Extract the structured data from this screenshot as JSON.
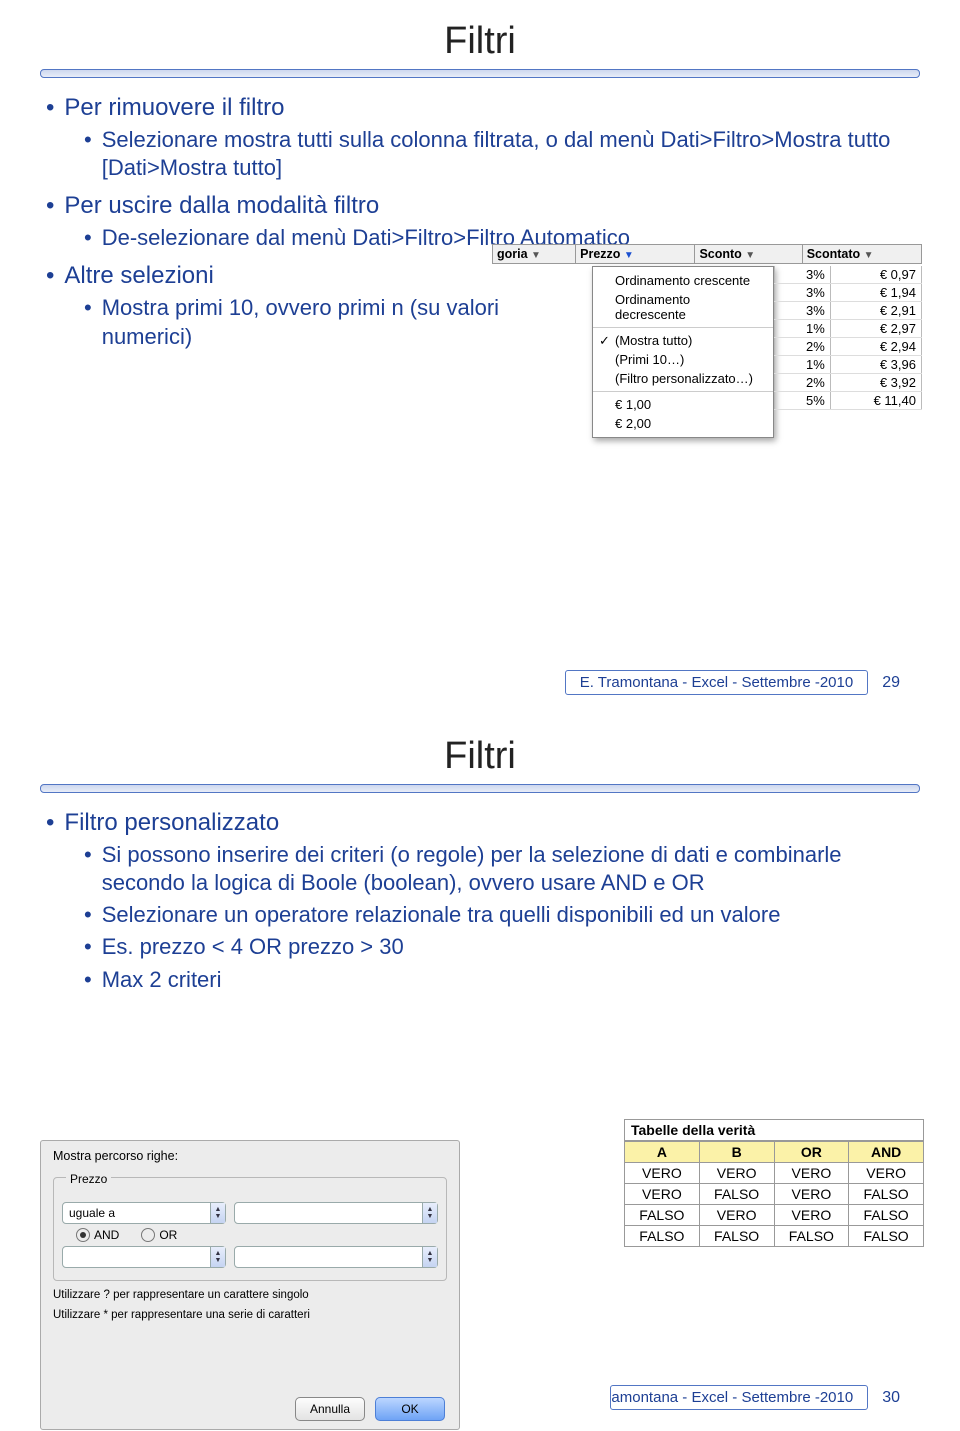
{
  "slide1": {
    "title": "Filtri",
    "b1": "Per rimuovere il filtro",
    "b1a": "Selezionare mostra tutti sulla colonna filtrata, o dal menù Dati>Filtro>Mostra tutto [Dati>Mostra tutto]",
    "b2": "Per uscire dalla modalità filtro",
    "b2a": "De-selezionare dal menù Dati>Filtro>Filtro Automatico",
    "b3": "Altre selezioni",
    "b3a": "Mostra primi 10, ovvero primi n (su valori numerici)",
    "footer": "E. Tramontana - Excel - Settembre -2010",
    "page": "29",
    "menu_shot": {
      "headers": [
        "goria",
        "Prezzo",
        "Sconto",
        "Scontato"
      ],
      "menu_items": {
        "asc": "Ordinamento crescente",
        "desc": "Ordinamento decrescente",
        "all": "(Mostra tutto)",
        "top10": "(Primi 10…)",
        "custom": "(Filtro personalizzato…)",
        "v1": "€ 1,00",
        "v2": "€ 2,00"
      },
      "right_rows": [
        [
          "3%",
          "€ 0,97"
        ],
        [
          "3%",
          "€ 1,94"
        ],
        [
          "3%",
          "€ 2,91"
        ],
        [
          "1%",
          "€ 2,97"
        ],
        [
          "2%",
          "€ 2,94"
        ],
        [
          "1%",
          "€ 3,96"
        ],
        [
          "2%",
          "€ 3,92"
        ],
        [
          "5%",
          "€ 11,40"
        ]
      ]
    }
  },
  "slide2": {
    "title": "Filtri",
    "b1": "Filtro personalizzato",
    "b1a": "Si possono inserire dei criteri (o regole) per la selezione di dati e combinarle secondo la logica di Boole (boolean), ovvero usare AND e OR",
    "b1b": "Selezionare un operatore relazionale tra quelli disponibili ed un valore",
    "b1c": "Es. prezzo < 4 OR prezzo > 30",
    "b1d": "Max 2 criteri",
    "footer": "amontana - Excel - Settembre -2010",
    "page": "30",
    "dialog": {
      "label": "Mostra percorso righe:",
      "group": "Prezzo",
      "op1": "uguale a",
      "and": "AND",
      "or": "OR",
      "hint1": "Utilizzare ? per rappresentare un carattere singolo",
      "hint2": "Utilizzare * per rappresentare una serie di caratteri",
      "cancel": "Annulla",
      "ok": "OK"
    },
    "truth": {
      "caption": "Tabelle della verità",
      "headers": [
        "A",
        "B",
        "OR",
        "AND"
      ],
      "rows": [
        [
          "VERO",
          "VERO",
          "VERO",
          "VERO"
        ],
        [
          "VERO",
          "FALSO",
          "VERO",
          "FALSO"
        ],
        [
          "FALSO",
          "VERO",
          "VERO",
          "FALSO"
        ],
        [
          "FALSO",
          "FALSO",
          "FALSO",
          "FALSO"
        ]
      ]
    }
  },
  "colors": {
    "bullet_blue": "#1d3f94",
    "rule_border": "#5276c4",
    "truth_header_bg": "#fbf2a8"
  }
}
